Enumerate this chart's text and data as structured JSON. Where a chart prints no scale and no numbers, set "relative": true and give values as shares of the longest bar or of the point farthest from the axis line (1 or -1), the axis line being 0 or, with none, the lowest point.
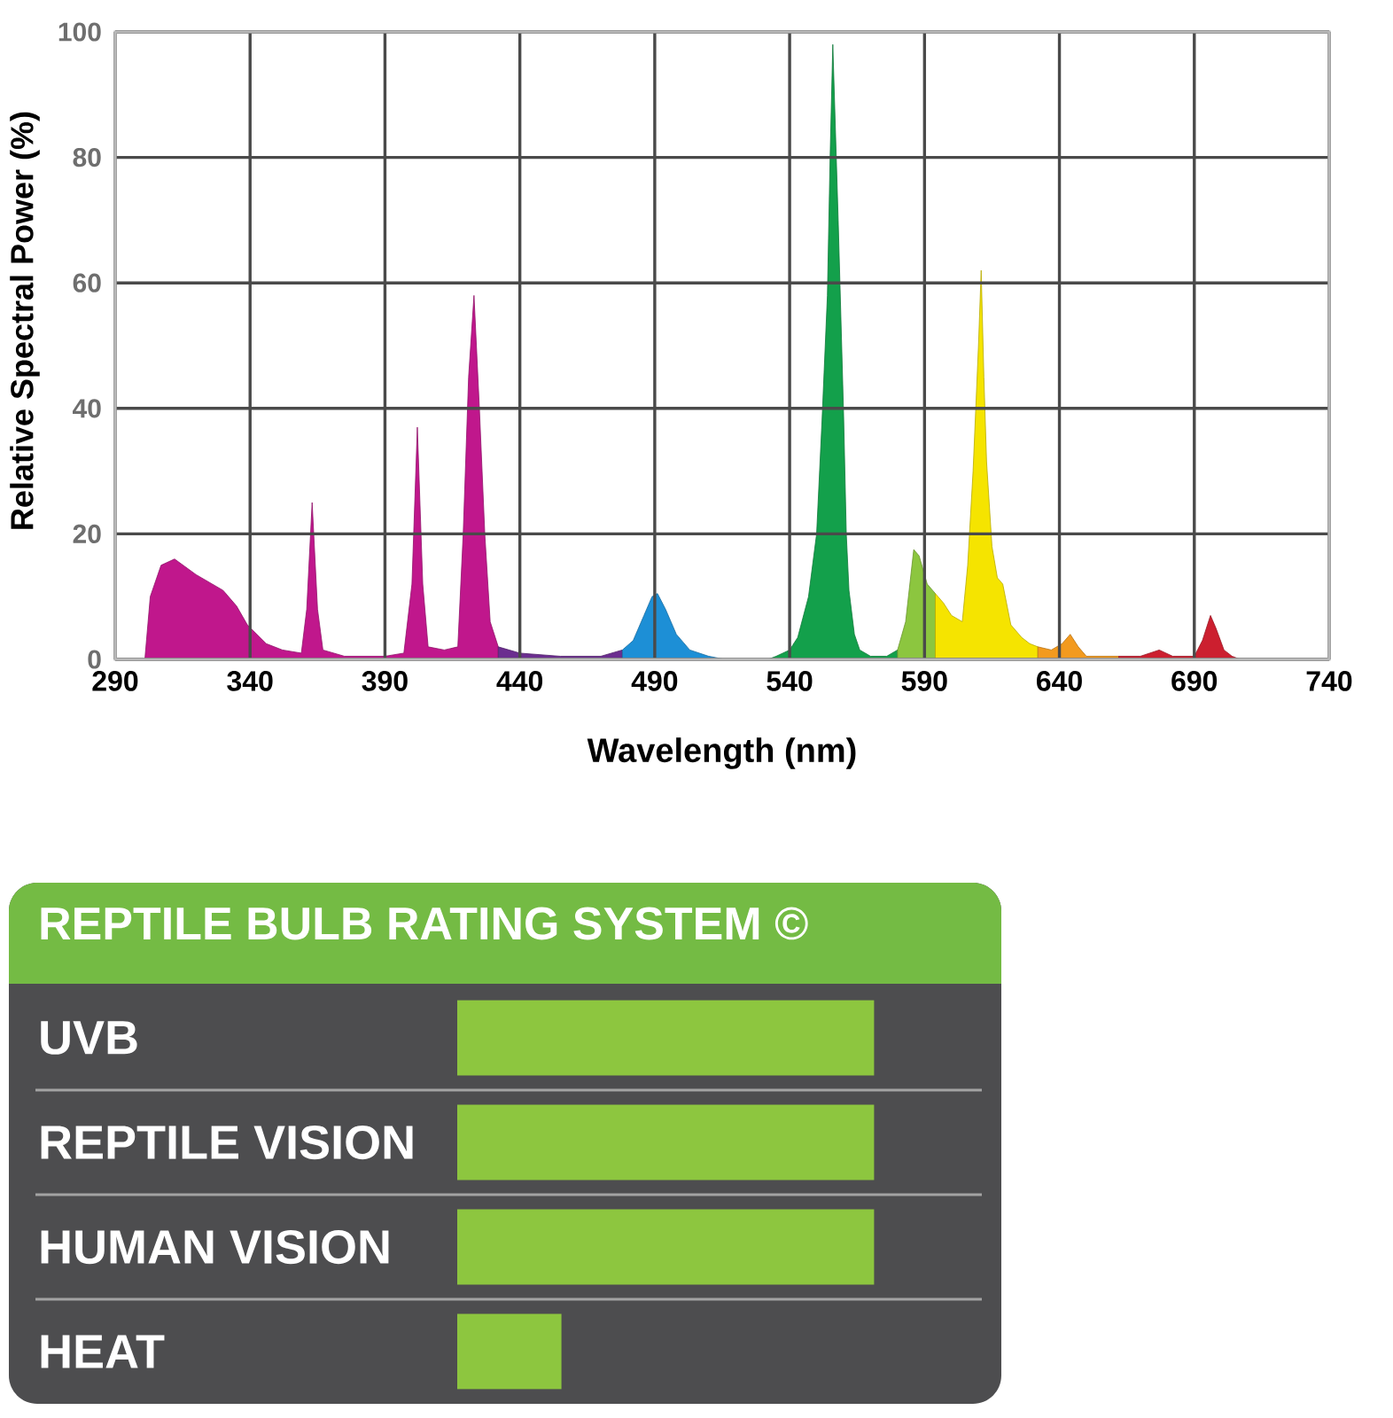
{
  "chart_data": [
    {
      "type": "area",
      "xlabel": "Wavelength (nm)",
      "ylabel": "Relative Spectral Power (%)",
      "xlim": [
        290,
        740
      ],
      "xticks": [
        290,
        340,
        390,
        440,
        490,
        540,
        590,
        640,
        690,
        740
      ],
      "ylim": [
        0,
        100
      ],
      "yticks": [
        0,
        20,
        40,
        60,
        80,
        100
      ],
      "grid": true,
      "series": [
        {
          "color": "#c0178c",
          "x": [
            301,
            303,
            307,
            312,
            320,
            330,
            335,
            339,
            346,
            352,
            359,
            361,
            363,
            365,
            367,
            375,
            390,
            397,
            400,
            402,
            404,
            406,
            412,
            417,
            419,
            421,
            423,
            425,
            427,
            429,
            432
          ],
          "values": [
            0,
            10,
            15,
            16,
            13.5,
            11,
            8.5,
            5.5,
            2.5,
            1.5,
            1,
            8,
            25,
            8,
            1.5,
            0.5,
            0.5,
            1,
            12,
            37,
            12,
            2,
            1.5,
            2,
            20,
            45,
            58,
            40,
            20,
            6,
            2
          ]
        },
        {
          "color": "#6b2d8f",
          "x": [
            432,
            440,
            455,
            470,
            478
          ],
          "values": [
            2,
            1,
            0.5,
            0.5,
            1.5
          ]
        },
        {
          "color": "#1d8fd6",
          "x": [
            478,
            482,
            486,
            489,
            491,
            494,
            498,
            503,
            510,
            516
          ],
          "values": [
            1.5,
            3,
            7,
            10,
            10.5,
            8,
            4,
            1.5,
            0.5,
            0
          ]
        },
        {
          "color": "#13a04b",
          "x": [
            532,
            535,
            540,
            543,
            547,
            550,
            552,
            554,
            555,
            556,
            558,
            560,
            561,
            562,
            564,
            566,
            570,
            576,
            580
          ],
          "values": [
            0,
            0.5,
            1.5,
            3.5,
            10,
            20,
            38,
            58,
            80,
            98,
            70,
            39,
            20,
            11,
            4,
            1.5,
            0.5,
            0.5,
            1.5
          ]
        },
        {
          "color": "#8cc63f",
          "x": [
            580,
            583,
            586,
            588,
            591,
            594
          ],
          "values": [
            1.5,
            6,
            17.5,
            16.5,
            12,
            10.5
          ]
        },
        {
          "color": "#f5e400",
          "x": [
            594,
            597,
            600,
            604,
            606,
            608,
            610,
            611,
            612,
            613,
            615,
            617,
            619,
            622,
            626,
            629,
            632
          ],
          "values": [
            10.5,
            9,
            7,
            6,
            15,
            30,
            50,
            62,
            45,
            31.5,
            18,
            13,
            12,
            5.5,
            3.5,
            2.5,
            2
          ]
        },
        {
          "color": "#f39a1e",
          "x": [
            632,
            637,
            641,
            644,
            647,
            650,
            662
          ],
          "values": [
            2,
            1.5,
            2.5,
            4,
            2,
            0.5,
            0.5
          ]
        },
        {
          "color": "#cc1f2f",
          "x": [
            662,
            670,
            677,
            682,
            690,
            693,
            696,
            698,
            701,
            704,
            707
          ],
          "values": [
            0.5,
            0.5,
            1.5,
            0.5,
            0.5,
            3,
            7,
            5,
            1.5,
            0.5,
            0
          ]
        }
      ]
    },
    {
      "type": "bar",
      "orientation": "horizontal",
      "relative": true,
      "title": "REPTILE BULB RATING SYSTEM ©",
      "categories": [
        "UVB",
        "REPTILE VISION",
        "HUMAN VISION",
        "HEAT"
      ],
      "values": [
        1,
        1,
        1,
        0.25
      ],
      "color": "#8dc63f"
    }
  ]
}
